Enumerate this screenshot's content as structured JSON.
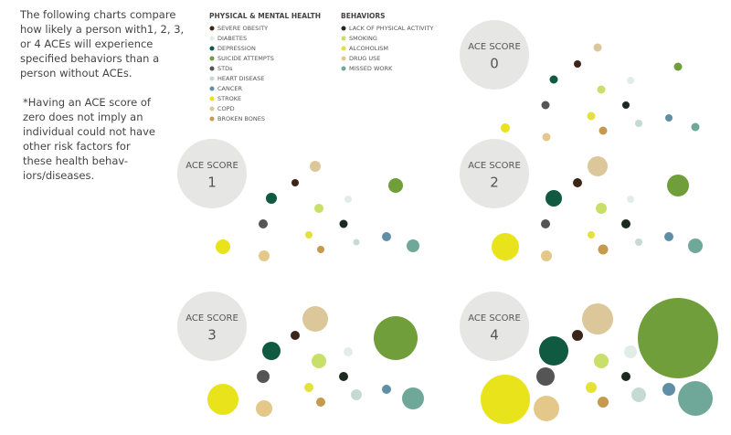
{
  "intro": "The following charts compare how likely a person with1, 2, 3, or 4 ACEs will experience specified behaviors than a person without ACEs.",
  "note": "*Having an ACE score of zero does not imply an individual could not have other risk factors for these health behav-iors/diseases.",
  "legend": {
    "health": {
      "title": "PHYSICAL & MENTAL HEALTH",
      "items": [
        {
          "name": "SEVERE OBESITY",
          "color": "#3d2418"
        },
        {
          "name": "DIABETES",
          "color": "#e2ede8"
        },
        {
          "name": "DEPRESSION",
          "color": "#0f5a40"
        },
        {
          "name": "SUICIDE ATTEMPTS",
          "color": "#6f9e3a"
        },
        {
          "name": "STDs",
          "color": "#555555"
        },
        {
          "name": "HEART DISEASE",
          "color": "#c5dad2"
        },
        {
          "name": "CANCER",
          "color": "#5f8fa6"
        },
        {
          "name": "STROKE",
          "color": "#e8e31a"
        },
        {
          "name": "COPD",
          "color": "#dcc79a"
        },
        {
          "name": "BROKEN BONES",
          "color": "#c69a4e"
        }
      ]
    },
    "behaviors": {
      "title": "BEHAVIORS",
      "items": [
        {
          "name": "LACK OF PHYSICAL ACTIVITY",
          "color": "#1c2a22"
        },
        {
          "name": "SMOKING",
          "color": "#c8df6a"
        },
        {
          "name": "ALCOHOLISM",
          "color": "#e4e23a"
        },
        {
          "name": "DRUG USE",
          "color": "#e3c88a"
        },
        {
          "name": "MISSED WORK",
          "color": "#6fa898"
        }
      ]
    }
  },
  "panels": [
    {
      "label": "ACE SCORE",
      "score": "0",
      "health_sizes": [
        4,
        4,
        4.5,
        4.5,
        4.5,
        4,
        4,
        5,
        4.5,
        4.5
      ],
      "behavior_sizes": [
        4,
        4.5,
        4.5,
        4.5,
        4.5
      ]
    },
    {
      "label": "ACE SCORE",
      "score": "1",
      "health_sizes": [
        4,
        4,
        6,
        8,
        5,
        3.5,
        5,
        8,
        6,
        4
      ],
      "behavior_sizes": [
        4.5,
        5,
        4,
        6,
        7
      ]
    },
    {
      "label": "ACE SCORE",
      "score": "2",
      "health_sizes": [
        5,
        4,
        9,
        12,
        5,
        4,
        5,
        15,
        11,
        5.5
      ],
      "behavior_sizes": [
        5,
        6,
        4,
        6,
        8
      ]
    },
    {
      "label": "ACE SCORE",
      "score": "3",
      "health_sizes": [
        5,
        5,
        10,
        24,
        7,
        6,
        5,
        17,
        14,
        5
      ],
      "behavior_sizes": [
        5,
        8,
        5,
        9,
        12
      ]
    },
    {
      "label": "ACE SCORE",
      "score": "4",
      "health_sizes": [
        6,
        7,
        16,
        44,
        10,
        8,
        7,
        27,
        17,
        6
      ],
      "behavior_sizes": [
        5,
        8,
        6,
        14,
        19
      ]
    }
  ]
}
